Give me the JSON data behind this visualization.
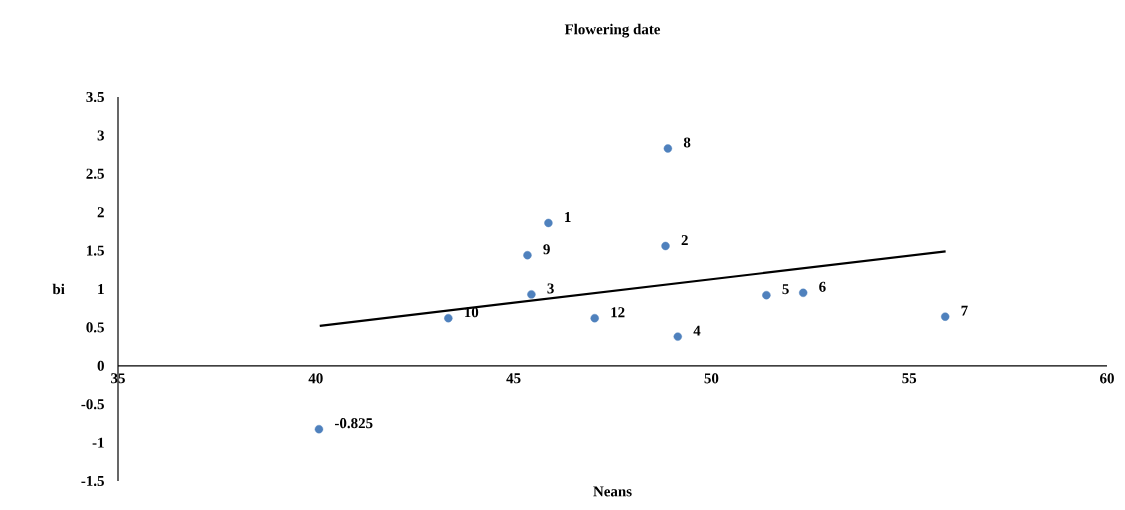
{
  "chart_data": {
    "type": "scatter",
    "title": "Flowering date",
    "xlabel": "Neans",
    "ylabel": "bi",
    "xlim": [
      35,
      60
    ],
    "xticks": [
      35,
      40,
      45,
      50,
      55,
      60
    ],
    "ylim": [
      -1.5,
      3.5
    ],
    "yticks": [
      -1.5,
      -1,
      -0.5,
      0,
      0.5,
      1,
      1.5,
      2,
      2.5,
      3,
      3.5
    ],
    "grid": false,
    "series": [
      {
        "marker": "circle",
        "color": "#4f81bd",
        "x": [
          45.88,
          48.84,
          45.45,
          49.15,
          51.39,
          52.32,
          55.91,
          48.9,
          45.35,
          43.35,
          47.05,
          40.08
        ],
        "values": [
          1.86,
          1.56,
          0.93,
          0.38,
          0.92,
          0.95,
          0.64,
          2.83,
          1.44,
          0.62,
          0.62,
          -0.825
        ]
      },
      {
        "type": "line",
        "color": "#000000",
        "x": [
          40.1,
          55.92
        ],
        "values": [
          0.52,
          1.49
        ]
      }
    ],
    "annotations": [
      {
        "text": "1",
        "x": 45.88,
        "y": 1.86
      },
      {
        "text": "2",
        "x": 48.84,
        "y": 1.56
      },
      {
        "text": "3",
        "x": 45.45,
        "y": 0.93
      },
      {
        "text": "4",
        "x": 49.15,
        "y": 0.38
      },
      {
        "text": "5",
        "x": 51.39,
        "y": 0.92
      },
      {
        "text": "6",
        "x": 52.32,
        "y": 0.95
      },
      {
        "text": "7",
        "x": 55.91,
        "y": 0.64
      },
      {
        "text": "8",
        "x": 48.9,
        "y": 2.83
      },
      {
        "text": "9",
        "x": 45.35,
        "y": 1.44
      },
      {
        "text": "10",
        "x": 43.35,
        "y": 0.62
      },
      {
        "text": "12",
        "x": 47.05,
        "y": 0.62
      },
      {
        "text": "-0.825",
        "x": 40.08,
        "y": -0.825
      }
    ]
  }
}
